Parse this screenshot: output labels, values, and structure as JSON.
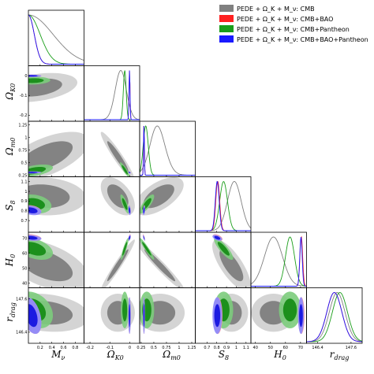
{
  "chart_data": {
    "type": "corner",
    "legend": [
      {
        "label": "PEDE + Ω_K + M_ν: CMB",
        "color": "#808080"
      },
      {
        "label": "PEDE + Ω_K + M_ν: CMB+BAO",
        "color": "#ff2020"
      },
      {
        "label": "PEDE + Ω_K + M_ν: CMB+Pantheon",
        "color": "#1a9e1a"
      },
      {
        "label": "PEDE + Ω_K + M_ν: CMB+BAO+Pantheon",
        "color": "#1a1aff"
      }
    ],
    "legend_placement": "top-right",
    "parameters": [
      {
        "key": "mnu",
        "label": "M_ν",
        "range": [
          0,
          0.95
        ]
      },
      {
        "key": "ok",
        "label": "Ω_K0",
        "range": [
          -0.23,
          0.05
        ]
      },
      {
        "key": "om",
        "label": "Ω_m0",
        "range": [
          0.22,
          1.32
        ]
      },
      {
        "key": "s8",
        "label": "S_8",
        "range": [
          0.58,
          1.15
        ]
      },
      {
        "key": "h0",
        "label": "H_0",
        "range": [
          37,
          74
        ]
      },
      {
        "key": "rdrag",
        "label": "r_drag",
        "range": [
          146.0,
          148.0
        ]
      }
    ],
    "ticks": {
      "mnu": {
        "values": [
          0.2,
          0.4,
          0.6,
          0.8
        ],
        "labels": [
          "0.2",
          "0.4",
          "0.6",
          "0.8"
        ]
      },
      "ok": {
        "values": [
          -0.2,
          -0.1,
          0.0
        ],
        "labels": [
          "-0.2",
          "-0.1",
          "0"
        ]
      },
      "om": {
        "values": [
          0.25,
          0.5,
          0.75,
          1.0,
          1.25
        ],
        "labels": [
          "0.25",
          "0.5",
          "0.75",
          "1",
          "1.25"
        ]
      },
      "s8": {
        "values": [
          0.7,
          0.8,
          0.9,
          1.0,
          1.1
        ],
        "labels": [
          "0.7",
          "0.8",
          "0.9",
          "1",
          "1.1"
        ]
      },
      "h0": {
        "values": [
          40,
          50,
          60,
          70
        ],
        "labels": [
          "40",
          "50",
          "60",
          "70"
        ]
      },
      "rdrag": {
        "values": [
          146.4,
          147.6
        ],
        "labels": [
          "146.4",
          "147.6"
        ]
      }
    },
    "posteriors": {
      "CMB": {
        "mnu": {
          "type": "halfgauss",
          "sigma": 0.42
        },
        "ok": {
          "mean": -0.045,
          "sd": 0.028
        },
        "om": {
          "mean": 0.48,
          "sd": 0.18,
          "skew": 1.5
        },
        "s8": {
          "mean": 0.98,
          "sd": 0.07
        },
        "h0": {
          "mean": 52,
          "sd": 6
        },
        "rdrag": {
          "mean": 147.1,
          "sd": 0.28
        }
      },
      "CMB+BAO": {
        "mnu": {
          "type": "halfgauss",
          "sigma": 0.1
        },
        "ok": {
          "mean": -0.001,
          "sd": 0.0025
        },
        "om": {
          "mean": 0.305,
          "sd": 0.008
        },
        "s8": {
          "mean": 0.81,
          "sd": 0.02
        },
        "h0": {
          "mean": 70.5,
          "sd": 0.9
        },
        "rdrag": {
          "mean": 147.0,
          "sd": 0.27
        }
      },
      "CMB+Pantheon": {
        "mnu": {
          "type": "halfgauss",
          "sigma": 0.2
        },
        "ok": {
          "mean": -0.025,
          "sd": 0.007
        },
        "om": {
          "mean": 0.34,
          "sd": 0.05
        },
        "s8": {
          "mean": 0.87,
          "sd": 0.04
        },
        "h0": {
          "mean": 63,
          "sd": 3
        },
        "rdrag": {
          "mean": 147.2,
          "sd": 0.27
        }
      },
      "CMB+BAO+Pantheon": {
        "mnu": {
          "type": "halfgauss",
          "sigma": 0.1
        },
        "ok": {
          "mean": -0.001,
          "sd": 0.0025
        },
        "om": {
          "mean": 0.305,
          "sd": 0.008
        },
        "s8": {
          "mean": 0.805,
          "sd": 0.02
        },
        "h0": {
          "mean": 70.3,
          "sd": 0.8
        },
        "rdrag": {
          "mean": 147.0,
          "sd": 0.27
        }
      }
    },
    "contours": [
      {
        "row": "ok",
        "col": "mnu",
        "dataset": "CMB",
        "mx": 0.15,
        "my": -0.06,
        "sx": 0.28,
        "sy": 0.03,
        "rho": 0.35
      },
      {
        "row": "ok",
        "col": "mnu",
        "dataset": "CMB+Pantheon",
        "mx": 0.08,
        "my": -0.025,
        "sx": 0.12,
        "sy": 0.008,
        "rho": 0.1
      },
      {
        "row": "ok",
        "col": "mnu",
        "dataset": "CMB+BAO",
        "mx": 0.05,
        "my": -0.001,
        "sx": 0.07,
        "sy": 0.0025,
        "rho": 0.0
      },
      {
        "row": "ok",
        "col": "mnu",
        "dataset": "CMB+BAO+Pantheon",
        "mx": 0.05,
        "my": -0.001,
        "sx": 0.07,
        "sy": 0.0025,
        "rho": 0.0
      },
      {
        "row": "om",
        "col": "mnu",
        "dataset": "CMB",
        "mx": 0.3,
        "my": 0.62,
        "sx": 0.3,
        "sy": 0.2,
        "rho": 0.6
      },
      {
        "row": "om",
        "col": "mnu",
        "dataset": "CMB+Pantheon",
        "mx": 0.1,
        "my": 0.34,
        "sx": 0.13,
        "sy": 0.05,
        "rho": 0.5
      },
      {
        "row": "om",
        "col": "mnu",
        "dataset": "CMB+BAO",
        "mx": 0.05,
        "my": 0.305,
        "sx": 0.07,
        "sy": 0.009,
        "rho": 0.1
      },
      {
        "row": "om",
        "col": "mnu",
        "dataset": "CMB+BAO+Pantheon",
        "mx": 0.05,
        "my": 0.305,
        "sx": 0.07,
        "sy": 0.009,
        "rho": 0.1
      },
      {
        "row": "om",
        "col": "ok",
        "dataset": "CMB",
        "mx": -0.06,
        "my": 0.62,
        "sx": 0.035,
        "sy": 0.2,
        "rho": -0.95
      },
      {
        "row": "om",
        "col": "ok",
        "dataset": "CMB+Pantheon",
        "mx": -0.025,
        "my": 0.36,
        "sx": 0.01,
        "sy": 0.06,
        "rho": -0.9
      },
      {
        "row": "om",
        "col": "ok",
        "dataset": "CMB+BAO",
        "mx": -0.001,
        "my": 0.305,
        "sx": 0.0025,
        "sy": 0.008,
        "rho": -0.5
      },
      {
        "row": "om",
        "col": "ok",
        "dataset": "CMB+BAO+Pantheon",
        "mx": -0.001,
        "my": 0.305,
        "sx": 0.0025,
        "sy": 0.008,
        "rho": -0.5
      },
      {
        "row": "s8",
        "col": "mnu",
        "dataset": "CMB",
        "mx": 0.25,
        "my": 0.95,
        "sx": 0.3,
        "sy": 0.08,
        "rho": -0.1
      },
      {
        "row": "s8",
        "col": "mnu",
        "dataset": "CMB+Pantheon",
        "mx": 0.1,
        "my": 0.87,
        "sx": 0.12,
        "sy": 0.04,
        "rho": -0.2
      },
      {
        "row": "s8",
        "col": "mnu",
        "dataset": "CMB+BAO",
        "mx": 0.05,
        "my": 0.81,
        "sx": 0.07,
        "sy": 0.02,
        "rho": -0.3
      },
      {
        "row": "s8",
        "col": "mnu",
        "dataset": "CMB+BAO+Pantheon",
        "mx": 0.05,
        "my": 0.805,
        "sx": 0.07,
        "sy": 0.02,
        "rho": -0.3
      },
      {
        "row": "s8",
        "col": "ok",
        "dataset": "CMB",
        "mx": -0.06,
        "my": 0.95,
        "sx": 0.035,
        "sy": 0.08,
        "rho": -0.5
      },
      {
        "row": "s8",
        "col": "ok",
        "dataset": "CMB+Pantheon",
        "mx": -0.025,
        "my": 0.87,
        "sx": 0.009,
        "sy": 0.04,
        "rho": -0.8
      },
      {
        "row": "s8",
        "col": "ok",
        "dataset": "CMB+BAO",
        "mx": -0.001,
        "my": 0.81,
        "sx": 0.0025,
        "sy": 0.02,
        "rho": -0.3
      },
      {
        "row": "s8",
        "col": "ok",
        "dataset": "CMB+BAO+Pantheon",
        "mx": -0.001,
        "my": 0.805,
        "sx": 0.0025,
        "sy": 0.02,
        "rho": -0.3
      },
      {
        "row": "s8",
        "col": "om",
        "dataset": "CMB",
        "mx": 0.6,
        "my": 0.95,
        "sx": 0.2,
        "sy": 0.08,
        "rho": 0.6
      },
      {
        "row": "s8",
        "col": "om",
        "dataset": "CMB+Pantheon",
        "mx": 0.36,
        "my": 0.87,
        "sx": 0.06,
        "sy": 0.04,
        "rho": 0.8
      },
      {
        "row": "s8",
        "col": "om",
        "dataset": "CMB+BAO",
        "mx": 0.305,
        "my": 0.81,
        "sx": 0.009,
        "sy": 0.02,
        "rho": 0.3
      },
      {
        "row": "s8",
        "col": "om",
        "dataset": "CMB+BAO+Pantheon",
        "mx": 0.305,
        "my": 0.805,
        "sx": 0.009,
        "sy": 0.02,
        "rho": 0.3
      },
      {
        "row": "h0",
        "col": "mnu",
        "dataset": "CMB",
        "mx": 0.3,
        "my": 52,
        "sx": 0.3,
        "sy": 7,
        "rho": -0.5
      },
      {
        "row": "h0",
        "col": "mnu",
        "dataset": "CMB+Pantheon",
        "mx": 0.1,
        "my": 63,
        "sx": 0.13,
        "sy": 3,
        "rho": -0.4
      },
      {
        "row": "h0",
        "col": "mnu",
        "dataset": "CMB+BAO",
        "mx": 0.05,
        "my": 70.5,
        "sx": 0.07,
        "sy": 0.9,
        "rho": -0.3
      },
      {
        "row": "h0",
        "col": "mnu",
        "dataset": "CMB+BAO+Pantheon",
        "mx": 0.05,
        "my": 70.3,
        "sx": 0.07,
        "sy": 0.8,
        "rho": -0.3
      },
      {
        "row": "h0",
        "col": "ok",
        "dataset": "CMB",
        "mx": -0.06,
        "my": 52,
        "sx": 0.035,
        "sy": 7,
        "rho": 0.97
      },
      {
        "row": "h0",
        "col": "ok",
        "dataset": "CMB+Pantheon",
        "mx": -0.025,
        "my": 63,
        "sx": 0.008,
        "sy": 3,
        "rho": 0.9
      },
      {
        "row": "h0",
        "col": "ok",
        "dataset": "CMB+BAO",
        "mx": -0.001,
        "my": 70.5,
        "sx": 0.0025,
        "sy": 0.9,
        "rho": 0.5
      },
      {
        "row": "h0",
        "col": "ok",
        "dataset": "CMB+BAO+Pantheon",
        "mx": -0.001,
        "my": 70.3,
        "sx": 0.0025,
        "sy": 0.8,
        "rho": 0.5
      },
      {
        "row": "h0",
        "col": "om",
        "dataset": "CMB",
        "mx": 0.62,
        "my": 52,
        "sx": 0.2,
        "sy": 7,
        "rho": -0.97
      },
      {
        "row": "h0",
        "col": "om",
        "dataset": "CMB+Pantheon",
        "mx": 0.36,
        "my": 63,
        "sx": 0.06,
        "sy": 3,
        "rho": -0.95
      },
      {
        "row": "h0",
        "col": "om",
        "dataset": "CMB+BAO",
        "mx": 0.305,
        "my": 70.5,
        "sx": 0.008,
        "sy": 0.9,
        "rho": -0.8
      },
      {
        "row": "h0",
        "col": "om",
        "dataset": "CMB+BAO+Pantheon",
        "mx": 0.305,
        "my": 70.3,
        "sx": 0.008,
        "sy": 0.8,
        "rho": -0.8
      },
      {
        "row": "h0",
        "col": "s8",
        "dataset": "CMB",
        "mx": 0.95,
        "my": 52,
        "sx": 0.08,
        "sy": 7,
        "rho": -0.75
      },
      {
        "row": "h0",
        "col": "s8",
        "dataset": "CMB+Pantheon",
        "mx": 0.87,
        "my": 63,
        "sx": 0.04,
        "sy": 3,
        "rho": -0.85
      },
      {
        "row": "h0",
        "col": "s8",
        "dataset": "CMB+BAO",
        "mx": 0.81,
        "my": 70.5,
        "sx": 0.02,
        "sy": 0.9,
        "rho": -0.5
      },
      {
        "row": "h0",
        "col": "s8",
        "dataset": "CMB+BAO+Pantheon",
        "mx": 0.805,
        "my": 70.3,
        "sx": 0.02,
        "sy": 0.8,
        "rho": -0.5
      },
      {
        "row": "rdrag",
        "col": "mnu",
        "dataset": "CMB",
        "mx": 0.3,
        "my": 147.1,
        "sx": 0.3,
        "sy": 0.28,
        "rho": -0.2
      },
      {
        "row": "rdrag",
        "col": "mnu",
        "dataset": "CMB+Pantheon",
        "mx": 0.1,
        "my": 147.2,
        "sx": 0.13,
        "sy": 0.27,
        "rho": -0.3
      },
      {
        "row": "rdrag",
        "col": "mnu",
        "dataset": "CMB+BAO",
        "mx": 0.05,
        "my": 147.0,
        "sx": 0.07,
        "sy": 0.27,
        "rho": -0.4
      },
      {
        "row": "rdrag",
        "col": "mnu",
        "dataset": "CMB+BAO+Pantheon",
        "mx": 0.05,
        "my": 147.0,
        "sx": 0.07,
        "sy": 0.27,
        "rho": -0.4
      },
      {
        "row": "rdrag",
        "col": "ok",
        "dataset": "CMB",
        "mx": -0.06,
        "my": 147.1,
        "sx": 0.035,
        "sy": 0.28,
        "rho": 0.0
      },
      {
        "row": "rdrag",
        "col": "ok",
        "dataset": "CMB+Pantheon",
        "mx": -0.025,
        "my": 147.2,
        "sx": 0.008,
        "sy": 0.27,
        "rho": 0.0
      },
      {
        "row": "rdrag",
        "col": "ok",
        "dataset": "CMB+BAO",
        "mx": -0.001,
        "my": 147.0,
        "sx": 0.0025,
        "sy": 0.27,
        "rho": 0.0
      },
      {
        "row": "rdrag",
        "col": "ok",
        "dataset": "CMB+BAO+Pantheon",
        "mx": -0.001,
        "my": 147.0,
        "sx": 0.0025,
        "sy": 0.27,
        "rho": 0.0
      },
      {
        "row": "rdrag",
        "col": "om",
        "dataset": "CMB",
        "mx": 0.62,
        "my": 147.1,
        "sx": 0.2,
        "sy": 0.28,
        "rho": 0.0
      },
      {
        "row": "rdrag",
        "col": "om",
        "dataset": "CMB+Pantheon",
        "mx": 0.36,
        "my": 147.2,
        "sx": 0.06,
        "sy": 0.27,
        "rho": 0.0
      },
      {
        "row": "rdrag",
        "col": "om",
        "dataset": "CMB+BAO",
        "mx": 0.305,
        "my": 147.0,
        "sx": 0.008,
        "sy": 0.27,
        "rho": 0.0
      },
      {
        "row": "rdrag",
        "col": "om",
        "dataset": "CMB+BAO+Pantheon",
        "mx": 0.305,
        "my": 147.0,
        "sx": 0.008,
        "sy": 0.27,
        "rho": 0.0
      },
      {
        "row": "rdrag",
        "col": "s8",
        "dataset": "CMB",
        "mx": 0.95,
        "my": 147.1,
        "sx": 0.07,
        "sy": 0.28,
        "rho": 0.0
      },
      {
        "row": "rdrag",
        "col": "s8",
        "dataset": "CMB+Pantheon",
        "mx": 0.87,
        "my": 147.2,
        "sx": 0.04,
        "sy": 0.27,
        "rho": 0.0
      },
      {
        "row": "rdrag",
        "col": "s8",
        "dataset": "CMB+BAO",
        "mx": 0.81,
        "my": 147.0,
        "sx": 0.02,
        "sy": 0.27,
        "rho": 0.0
      },
      {
        "row": "rdrag",
        "col": "s8",
        "dataset": "CMB+BAO+Pantheon",
        "mx": 0.805,
        "my": 147.0,
        "sx": 0.02,
        "sy": 0.27,
        "rho": 0.0
      },
      {
        "row": "rdrag",
        "col": "h0",
        "dataset": "CMB",
        "mx": 52,
        "my": 147.1,
        "sx": 6,
        "sy": 0.28,
        "rho": 0.0
      },
      {
        "row": "rdrag",
        "col": "h0",
        "dataset": "CMB+Pantheon",
        "mx": 63,
        "my": 147.2,
        "sx": 3,
        "sy": 0.27,
        "rho": 0.0
      },
      {
        "row": "rdrag",
        "col": "h0",
        "dataset": "CMB+BAO",
        "mx": 70.5,
        "my": 147.0,
        "sx": 0.9,
        "sy": 0.27,
        "rho": 0.0
      },
      {
        "row": "rdrag",
        "col": "h0",
        "dataset": "CMB+BAO+Pantheon",
        "mx": 70.3,
        "my": 147.0,
        "sx": 0.8,
        "sy": 0.27,
        "rho": 0.0
      }
    ],
    "styles": {
      "CMB": {
        "line": "#808080",
        "fill68": "#7a7a7a",
        "fill95": "#cfcfcf"
      },
      "CMB+BAO": {
        "line": "#ff2020",
        "fill68": "#e01010",
        "fill95": "#ff9a9a"
      },
      "CMB+Pantheon": {
        "line": "#1a9e1a",
        "fill68": "#128a12",
        "fill95": "#7ccc7c"
      },
      "CMB+BAO+Pantheon": {
        "line": "#1a1aff",
        "fill68": "#1010e0",
        "fill95": "#8a8aff"
      }
    }
  }
}
